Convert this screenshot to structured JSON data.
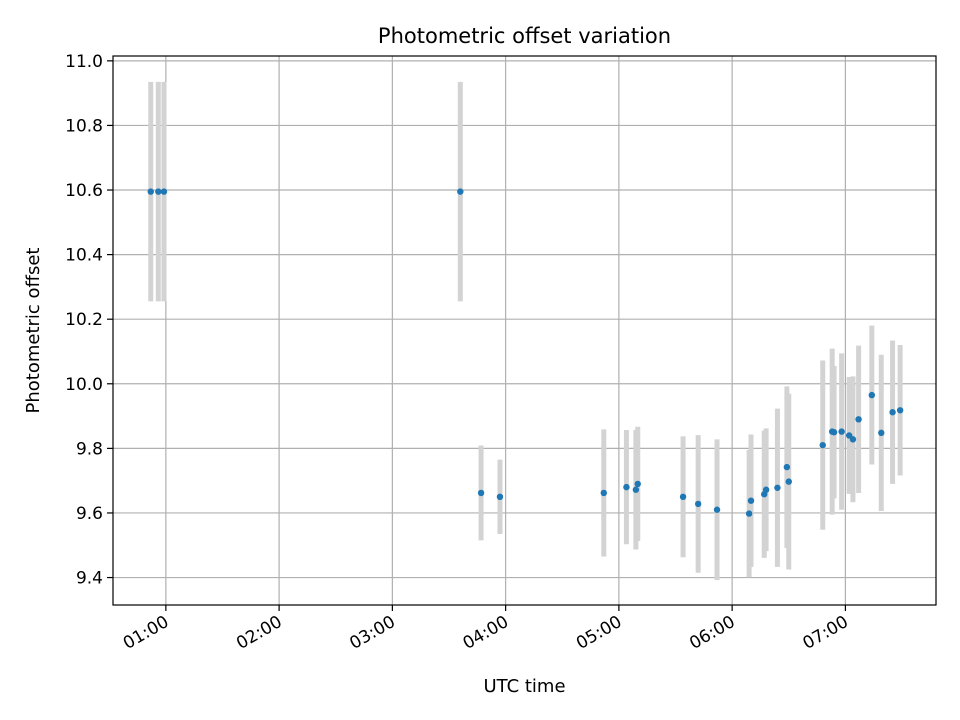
{
  "chart_data": {
    "type": "scatter",
    "title": "Photometric offset variation",
    "xlabel": "UTC time",
    "ylabel": "Photometric offset",
    "x_unit": "UTC hh:mm",
    "xlim": [
      "00:32",
      "07:48"
    ],
    "ylim": [
      9.315,
      11.015
    ],
    "x_ticks": [
      "01:00",
      "02:00",
      "03:00",
      "04:00",
      "05:00",
      "06:00",
      "07:00"
    ],
    "y_ticks": [
      "9.4",
      "9.6",
      "9.8",
      "10.0",
      "10.2",
      "10.4",
      "10.6",
      "10.8",
      "11.0"
    ],
    "grid": true,
    "legend": "none",
    "series": [
      {
        "marker_color": "#1f77b4",
        "errorbar_color": "#d3d3d3",
        "points": [
          {
            "x": "00:52",
            "y": 10.595,
            "err": 0.34
          },
          {
            "x": "00:56",
            "y": 10.595,
            "err": 0.34
          },
          {
            "x": "00:59",
            "y": 10.595,
            "err": 0.34
          },
          {
            "x": "03:36",
            "y": 10.595,
            "err": 0.34
          },
          {
            "x": "03:47",
            "y": 9.662,
            "err": 0.147
          },
          {
            "x": "03:57",
            "y": 9.65,
            "err": 0.115
          },
          {
            "x": "04:52",
            "y": 9.662,
            "err": 0.197
          },
          {
            "x": "05:04",
            "y": 9.68,
            "err": 0.177
          },
          {
            "x": "05:09",
            "y": 9.672,
            "err": 0.185
          },
          {
            "x": "05:10",
            "y": 9.69,
            "err": 0.177
          },
          {
            "x": "05:34",
            "y": 9.65,
            "err": 0.187
          },
          {
            "x": "05:42",
            "y": 9.628,
            "err": 0.213
          },
          {
            "x": "05:52",
            "y": 9.61,
            "err": 0.218
          },
          {
            "x": "06:09",
            "y": 9.598,
            "err": 0.197
          },
          {
            "x": "06:10",
            "y": 9.638,
            "err": 0.205
          },
          {
            "x": "06:17",
            "y": 9.658,
            "err": 0.197
          },
          {
            "x": "06:18",
            "y": 9.672,
            "err": 0.19
          },
          {
            "x": "06:24",
            "y": 9.678,
            "err": 0.245
          },
          {
            "x": "06:29",
            "y": 9.742,
            "err": 0.25
          },
          {
            "x": "06:30",
            "y": 9.697,
            "err": 0.272
          },
          {
            "x": "06:48",
            "y": 9.81,
            "err": 0.262
          },
          {
            "x": "06:53",
            "y": 9.852,
            "err": 0.257
          },
          {
            "x": "06:54",
            "y": 9.85,
            "err": 0.205
          },
          {
            "x": "06:58",
            "y": 9.852,
            "err": 0.242
          },
          {
            "x": "07:02",
            "y": 9.84,
            "err": 0.181
          },
          {
            "x": "07:04",
            "y": 9.828,
            "err": 0.195
          },
          {
            "x": "07:07",
            "y": 9.89,
            "err": 0.228
          },
          {
            "x": "07:14",
            "y": 9.965,
            "err": 0.215
          },
          {
            "x": "07:19",
            "y": 9.848,
            "err": 0.242
          },
          {
            "x": "07:25",
            "y": 9.912,
            "err": 0.222
          },
          {
            "x": "07:29",
            "y": 9.918,
            "err": 0.202
          }
        ]
      }
    ]
  }
}
